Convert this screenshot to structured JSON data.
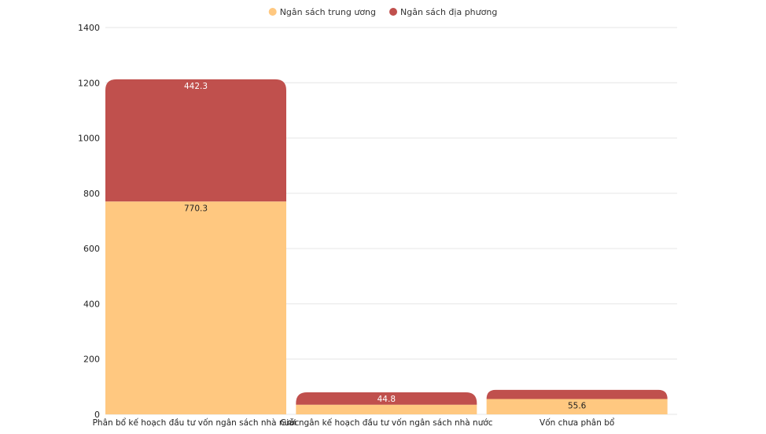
{
  "chart_data": {
    "type": "bar",
    "stacked": true,
    "categories": [
      "Phân bổ kế hoạch đầu tư vốn ngân sách nhà nước",
      "Giải ngân kế hoạch đầu tư vốn ngân sách nhà nước",
      "Vốn chưa phân bổ"
    ],
    "series": [
      {
        "name": "Ngân sách trung ương",
        "color": "#FFC880",
        "values": [
          770.3,
          35,
          55.6
        ],
        "labels": [
          "770.3",
          "",
          "55.6"
        ]
      },
      {
        "name": "Ngân sách địa phương",
        "color": "#C0504D",
        "values": [
          442.3,
          44.8,
          33
        ],
        "labels": [
          "442.3",
          "44.8",
          ""
        ]
      }
    ],
    "ylim": [
      0,
      1400
    ],
    "yticks": [
      0,
      200,
      400,
      600,
      800,
      1000,
      1200,
      1400
    ],
    "legend_position": "top-center",
    "grid": true
  }
}
